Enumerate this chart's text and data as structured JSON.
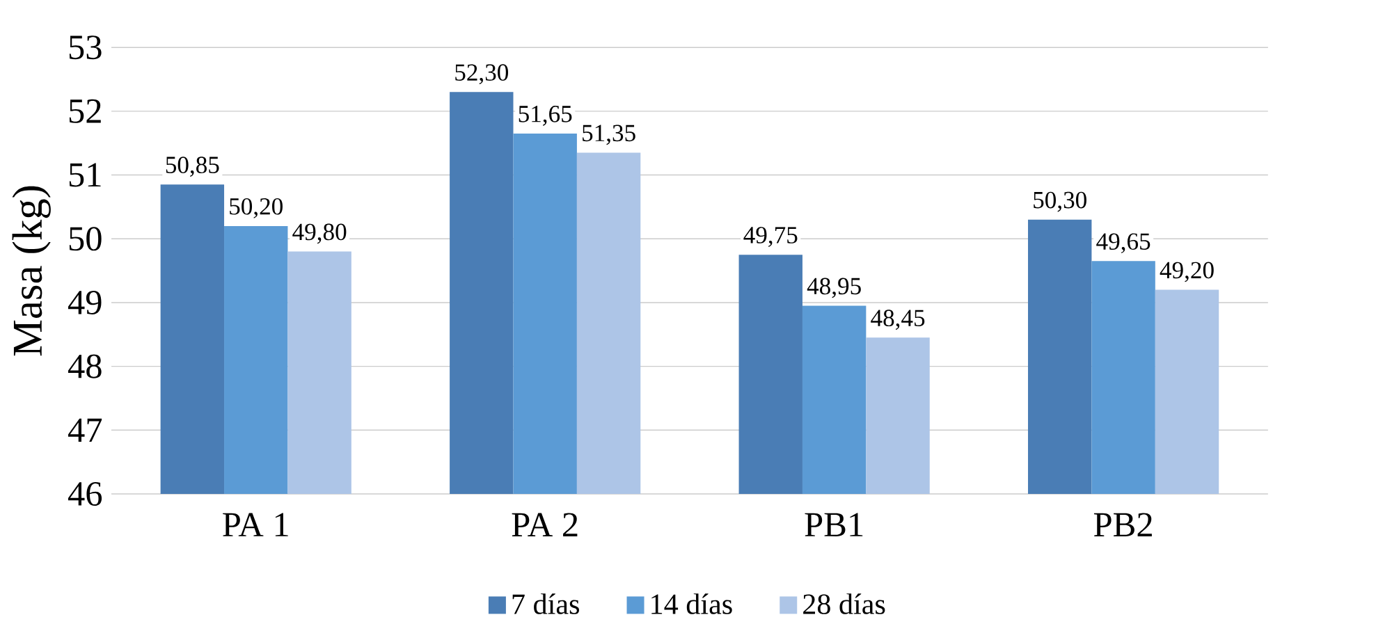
{
  "chart_data": {
    "type": "bar",
    "ylabel": "Masa (kg)",
    "categories": [
      "PA 1",
      "PA 2",
      "PB1",
      "PB2"
    ],
    "series": [
      {
        "name": "7 días",
        "color": "#4a7db5",
        "values": [
          50.85,
          52.3,
          49.75,
          50.3
        ],
        "value_labels": [
          "50,85",
          "52,30",
          "49,75",
          "50,30"
        ]
      },
      {
        "name": "14 días",
        "color": "#5b9bd5",
        "values": [
          50.2,
          51.65,
          48.95,
          49.65
        ],
        "value_labels": [
          "50,20",
          "51,65",
          "48,95",
          "49,65"
        ]
      },
      {
        "name": "28 días",
        "color": "#adc5e7",
        "values": [
          49.8,
          51.35,
          48.45,
          49.2
        ],
        "value_labels": [
          "49,80",
          "51,35",
          "48,45",
          "49,20"
        ]
      }
    ],
    "ylim": [
      46,
      53
    ],
    "yticks": [
      46,
      47,
      48,
      49,
      50,
      51,
      52,
      53
    ],
    "grid": "y",
    "legend": "bottom"
  }
}
